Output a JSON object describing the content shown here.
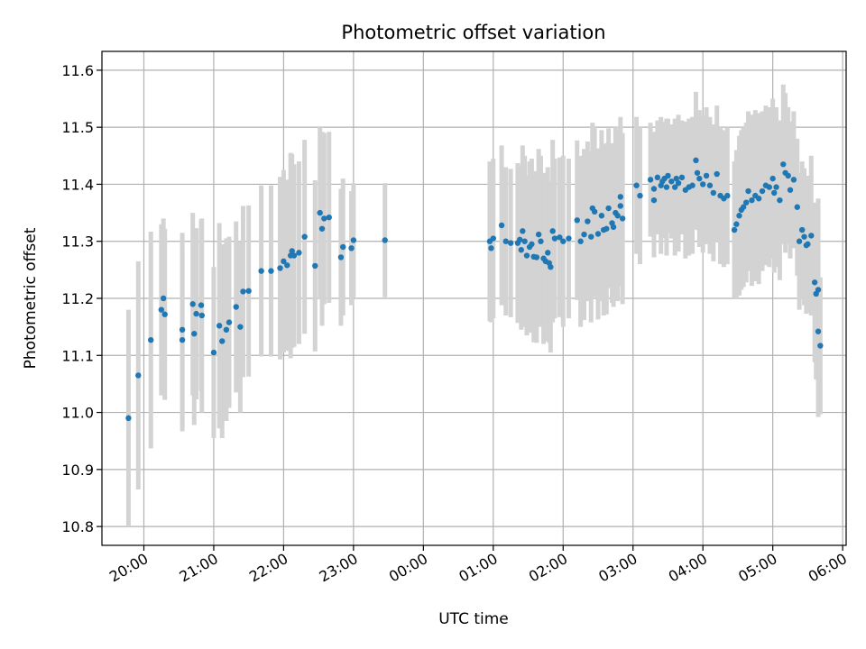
{
  "chart_data": {
    "type": "scatter",
    "title": "Photometric offset variation",
    "xlabel": "UTC time",
    "ylabel": "Photometric offset",
    "x_unit": "hours since 20:00 UTC",
    "xlim": [
      -0.6,
      10.05
    ],
    "ylim": [
      10.767,
      11.633
    ],
    "grid": true,
    "yticks": [
      10.8,
      10.9,
      11.0,
      11.1,
      11.2,
      11.3,
      11.4,
      11.5,
      11.6
    ],
    "ytick_labels": [
      "10.8",
      "10.9",
      "11.0",
      "11.1",
      "11.2",
      "11.3",
      "11.4",
      "11.5",
      "11.6"
    ],
    "xticks": [
      0,
      1,
      2,
      3,
      4,
      5,
      6,
      7,
      8,
      9,
      10
    ],
    "xtick_labels": [
      "20:00",
      "21:00",
      "22:00",
      "23:00",
      "00:00",
      "01:00",
      "02:00",
      "03:00",
      "04:00",
      "05:00",
      "06:00"
    ],
    "colors": {
      "point": "#1f77b4",
      "errorbar": "#d3d3d3",
      "grid": "#b0b0b0"
    },
    "series": [
      {
        "name": "offset",
        "points": [
          [
            -0.22,
            10.99,
            0.19
          ],
          [
            -0.08,
            11.065,
            0.2
          ],
          [
            0.1,
            11.127,
            0.19
          ],
          [
            0.25,
            11.18,
            0.15
          ],
          [
            0.28,
            11.2,
            0.14
          ],
          [
            0.3,
            11.172,
            0.15
          ],
          [
            0.55,
            11.145,
            0.17
          ],
          [
            0.55,
            11.127,
            0.16
          ],
          [
            0.7,
            11.19,
            0.16
          ],
          [
            0.72,
            11.138,
            0.16
          ],
          [
            0.75,
            11.173,
            0.15
          ],
          [
            0.82,
            11.188,
            0.15
          ],
          [
            0.83,
            11.17,
            0.17
          ],
          [
            1.0,
            11.105,
            0.15
          ],
          [
            1.08,
            11.152,
            0.18
          ],
          [
            1.12,
            11.125,
            0.17
          ],
          [
            1.18,
            11.145,
            0.16
          ],
          [
            1.22,
            11.158,
            0.15
          ],
          [
            1.32,
            11.185,
            0.15
          ],
          [
            1.38,
            11.15,
            0.15
          ],
          [
            1.42,
            11.212,
            0.15
          ],
          [
            1.5,
            11.213,
            0.15
          ],
          [
            1.68,
            11.248,
            0.15
          ],
          [
            1.82,
            11.248,
            0.15
          ],
          [
            1.95,
            11.253,
            0.16
          ],
          [
            2.0,
            11.265,
            0.16
          ],
          [
            2.05,
            11.258,
            0.15
          ],
          [
            2.1,
            11.275,
            0.18
          ],
          [
            2.12,
            11.283,
            0.17
          ],
          [
            2.15,
            11.275,
            0.16
          ],
          [
            2.22,
            11.28,
            0.16
          ],
          [
            2.3,
            11.308,
            0.17
          ],
          [
            2.45,
            11.257,
            0.15
          ],
          [
            2.52,
            11.35,
            0.15
          ],
          [
            2.55,
            11.322,
            0.17
          ],
          [
            2.58,
            11.34,
            0.15
          ],
          [
            2.65,
            11.342,
            0.15
          ],
          [
            2.82,
            11.272,
            0.12
          ],
          [
            2.85,
            11.29,
            0.12
          ],
          [
            2.97,
            11.288,
            0.1
          ],
          [
            3.0,
            11.302,
            0.1
          ],
          [
            3.45,
            11.302,
            0.1
          ],
          [
            4.95,
            11.3,
            0.14
          ],
          [
            4.97,
            11.288,
            0.13
          ],
          [
            5.0,
            11.305,
            0.14
          ],
          [
            5.12,
            11.328,
            0.14
          ],
          [
            5.18,
            11.3,
            0.13
          ],
          [
            5.25,
            11.297,
            0.13
          ],
          [
            5.35,
            11.297,
            0.14
          ],
          [
            5.38,
            11.303,
            0.13
          ],
          [
            5.4,
            11.285,
            0.14
          ],
          [
            5.42,
            11.318,
            0.15
          ],
          [
            5.45,
            11.3,
            0.15
          ],
          [
            5.48,
            11.275,
            0.14
          ],
          [
            5.52,
            11.29,
            0.15
          ],
          [
            5.55,
            11.295,
            0.15
          ],
          [
            5.58,
            11.273,
            0.15
          ],
          [
            5.62,
            11.272,
            0.15
          ],
          [
            5.65,
            11.312,
            0.15
          ],
          [
            5.68,
            11.3,
            0.15
          ],
          [
            5.72,
            11.27,
            0.15
          ],
          [
            5.75,
            11.265,
            0.14
          ],
          [
            5.78,
            11.28,
            0.15
          ],
          [
            5.8,
            11.262,
            0.14
          ],
          [
            5.82,
            11.255,
            0.15
          ],
          [
            5.85,
            11.318,
            0.16
          ],
          [
            5.88,
            11.305,
            0.14
          ],
          [
            5.95,
            11.307,
            0.14
          ],
          [
            6.0,
            11.3,
            0.15
          ],
          [
            6.08,
            11.305,
            0.14
          ],
          [
            6.2,
            11.337,
            0.14
          ],
          [
            6.25,
            11.3,
            0.15
          ],
          [
            6.3,
            11.312,
            0.15
          ],
          [
            6.35,
            11.335,
            0.14
          ],
          [
            6.4,
            11.308,
            0.15
          ],
          [
            6.42,
            11.358,
            0.15
          ],
          [
            6.45,
            11.352,
            0.15
          ],
          [
            6.5,
            11.313,
            0.15
          ],
          [
            6.55,
            11.345,
            0.15
          ],
          [
            6.58,
            11.32,
            0.15
          ],
          [
            6.62,
            11.322,
            0.15
          ],
          [
            6.65,
            11.358,
            0.14
          ],
          [
            6.7,
            11.332,
            0.14
          ],
          [
            6.72,
            11.325,
            0.14
          ],
          [
            6.75,
            11.35,
            0.15
          ],
          [
            6.78,
            11.345,
            0.15
          ],
          [
            6.82,
            11.362,
            0.14
          ],
          [
            6.82,
            11.378,
            0.14
          ],
          [
            6.85,
            11.34,
            0.15
          ],
          [
            7.05,
            11.398,
            0.12
          ],
          [
            7.1,
            11.38,
            0.12
          ],
          [
            7.25,
            11.408,
            0.1
          ],
          [
            7.3,
            11.372,
            0.1
          ],
          [
            7.3,
            11.392,
            0.1
          ],
          [
            7.35,
            11.412,
            0.1
          ],
          [
            7.4,
            11.398,
            0.12
          ],
          [
            7.42,
            11.405,
            0.1
          ],
          [
            7.45,
            11.41,
            0.1
          ],
          [
            7.48,
            11.395,
            0.12
          ],
          [
            7.5,
            11.415,
            0.1
          ],
          [
            7.55,
            11.405,
            0.1
          ],
          [
            7.6,
            11.395,
            0.12
          ],
          [
            7.62,
            11.41,
            0.1
          ],
          [
            7.65,
            11.402,
            0.12
          ],
          [
            7.7,
            11.412,
            0.1
          ],
          [
            7.75,
            11.39,
            0.12
          ],
          [
            7.8,
            11.395,
            0.12
          ],
          [
            7.85,
            11.398,
            0.12
          ],
          [
            7.9,
            11.442,
            0.12
          ],
          [
            7.92,
            11.42,
            0.1
          ],
          [
            7.95,
            11.41,
            0.12
          ],
          [
            8.0,
            11.4,
            0.12
          ],
          [
            8.05,
            11.415,
            0.12
          ],
          [
            8.1,
            11.398,
            0.12
          ],
          [
            8.15,
            11.385,
            0.12
          ],
          [
            8.2,
            11.418,
            0.12
          ],
          [
            8.25,
            11.38,
            0.12
          ],
          [
            8.3,
            11.375,
            0.12
          ],
          [
            8.35,
            11.38,
            0.12
          ],
          [
            8.45,
            11.32,
            0.12
          ],
          [
            8.48,
            11.33,
            0.13
          ],
          [
            8.52,
            11.345,
            0.14
          ],
          [
            8.55,
            11.355,
            0.14
          ],
          [
            8.58,
            11.36,
            0.14
          ],
          [
            8.62,
            11.368,
            0.14
          ],
          [
            8.65,
            11.388,
            0.14
          ],
          [
            8.7,
            11.372,
            0.15
          ],
          [
            8.75,
            11.38,
            0.15
          ],
          [
            8.8,
            11.375,
            0.15
          ],
          [
            8.85,
            11.388,
            0.14
          ],
          [
            8.9,
            11.398,
            0.14
          ],
          [
            8.95,
            11.395,
            0.14
          ],
          [
            9.0,
            11.41,
            0.14
          ],
          [
            9.02,
            11.385,
            0.14
          ],
          [
            9.05,
            11.395,
            0.14
          ],
          [
            9.1,
            11.372,
            0.14
          ],
          [
            9.15,
            11.435,
            0.14
          ],
          [
            9.18,
            11.42,
            0.14
          ],
          [
            9.22,
            11.415,
            0.12
          ],
          [
            9.25,
            11.39,
            0.12
          ],
          [
            9.3,
            11.408,
            0.12
          ],
          [
            9.35,
            11.36,
            0.12
          ],
          [
            9.38,
            11.3,
            0.12
          ],
          [
            9.42,
            11.32,
            0.12
          ],
          [
            9.45,
            11.308,
            0.12
          ],
          [
            9.48,
            11.293,
            0.12
          ],
          [
            9.5,
            11.295,
            0.12
          ],
          [
            9.55,
            11.31,
            0.14
          ],
          [
            9.6,
            11.228,
            0.14
          ],
          [
            9.62,
            11.208,
            0.15
          ],
          [
            9.65,
            11.215,
            0.16
          ],
          [
            9.65,
            11.142,
            0.15
          ],
          [
            9.68,
            11.117,
            0.12
          ]
        ]
      }
    ]
  }
}
